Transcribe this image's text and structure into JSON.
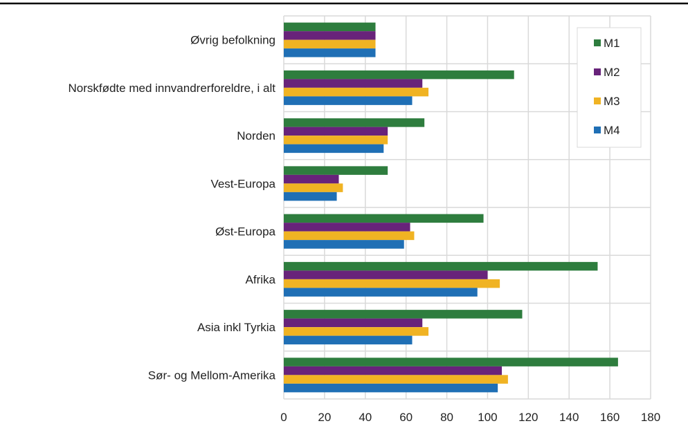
{
  "chart_data": {
    "type": "bar",
    "orientation": "horizontal",
    "categories": [
      "Øvrig befolkning",
      "Norskfødte med innvandrerforeldre, i alt",
      "Norden",
      "Vest-Europa",
      "Øst-Europa",
      "Afrika",
      "Asia inkl Tyrkia",
      "Sør- og Mellom-Amerika"
    ],
    "series": [
      {
        "name": "M1",
        "color": "#2e7d3e",
        "values": [
          45,
          113,
          69,
          51,
          98,
          154,
          117,
          164
        ]
      },
      {
        "name": "M2",
        "color": "#68237a",
        "values": [
          45,
          68,
          51,
          27,
          62,
          100,
          68,
          107
        ]
      },
      {
        "name": "M3",
        "color": "#f0b323",
        "values": [
          45,
          71,
          51,
          29,
          64,
          106,
          71,
          110
        ]
      },
      {
        "name": "M4",
        "color": "#1f6fb5",
        "values": [
          45,
          63,
          49,
          26,
          59,
          95,
          63,
          105
        ]
      }
    ],
    "xlim": [
      0,
      180
    ],
    "xticks": [
      0,
      20,
      40,
      60,
      80,
      100,
      120,
      140,
      160,
      180
    ],
    "grid": true,
    "legend": "top-right",
    "title": "",
    "xlabel": "",
    "ylabel": ""
  }
}
